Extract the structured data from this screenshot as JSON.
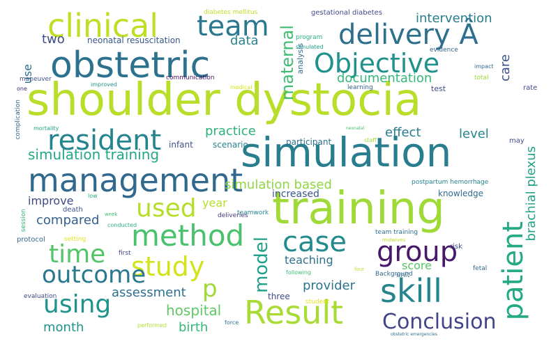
{
  "words": [
    {
      "text": "shoulder dystocia",
      "color": "#b8de29"
    },
    {
      "text": "simulation",
      "color": "#287d8e"
    },
    {
      "text": "training",
      "color": "#a0da39"
    },
    {
      "text": "obstetric",
      "color": "#2c728e"
    },
    {
      "text": "management",
      "color": "#31688e"
    },
    {
      "text": "delivery Â",
      "color": "#2d708e"
    },
    {
      "text": "clinical",
      "color": "#bddf26"
    },
    {
      "text": "team",
      "color": "#2a788e"
    },
    {
      "text": "resident",
      "color": "#25858e"
    },
    {
      "text": "Objective",
      "color": "#21918c"
    },
    {
      "text": "method",
      "color": "#4ac16d"
    },
    {
      "text": "Result",
      "color": "#a8db34"
    },
    {
      "text": "study",
      "color": "#d2e21b"
    },
    {
      "text": "skill",
      "color": "#25848e"
    },
    {
      "text": "group",
      "color": "#48186a"
    },
    {
      "text": "case",
      "color": "#238a8d"
    },
    {
      "text": "patient",
      "color": "#23a983"
    },
    {
      "text": "used",
      "color": "#b5de2b"
    },
    {
      "text": "using",
      "color": "#20938c"
    },
    {
      "text": "time",
      "color": "#52c569"
    },
    {
      "text": "outcome",
      "color": "#2a788e"
    },
    {
      "text": "Conclusion",
      "color": "#414487"
    },
    {
      "text": "maternal",
      "color": "#3fbc73"
    },
    {
      "text": "model",
      "color": "#1fa088"
    },
    {
      "text": "brachial plexus",
      "color": "#20a386"
    },
    {
      "text": "p",
      "color": "#a0da39"
    },
    {
      "text": "simulation training",
      "color": "#22a884"
    },
    {
      "text": "intervention",
      "color": "#287d8e"
    },
    {
      "text": "documentation",
      "color": "#35b779"
    },
    {
      "text": "practice",
      "color": "#2db27d"
    },
    {
      "text": "effect",
      "color": "#287c8e"
    },
    {
      "text": "level",
      "color": "#25858e"
    },
    {
      "text": "simulation based",
      "color": "#8fd744"
    },
    {
      "text": "two",
      "color": "#3e4a89"
    },
    {
      "text": "data",
      "color": "#26828e"
    },
    {
      "text": "use",
      "color": "#2e6e8e"
    },
    {
      "text": "care",
      "color": "#3b528b"
    },
    {
      "text": "improve",
      "color": "#3e4a89"
    },
    {
      "text": "compared",
      "color": "#355f8d"
    },
    {
      "text": "year",
      "color": "#b5de2b"
    },
    {
      "text": "increased",
      "color": "#39568c"
    },
    {
      "text": "teaching",
      "color": "#2d708e"
    },
    {
      "text": "score",
      "color": "#56c667"
    },
    {
      "text": "provider",
      "color": "#2c738e"
    },
    {
      "text": "assessment",
      "color": "#2e6f8e"
    },
    {
      "text": "hospital",
      "color": "#5ec962"
    },
    {
      "text": "birth",
      "color": "#35b779"
    },
    {
      "text": "month",
      "color": "#20928c"
    },
    {
      "text": "neonatal resuscitation",
      "color": "#39558c"
    },
    {
      "text": "infant",
      "color": "#3b528b"
    },
    {
      "text": "scenario",
      "color": "#26828e"
    },
    {
      "text": "participant",
      "color": "#2d718e"
    },
    {
      "text": "knowledge",
      "color": "#2f6b8e"
    },
    {
      "text": "death",
      "color": "#3b528b"
    },
    {
      "text": "diabetes mellitus",
      "color": "#bddf26"
    },
    {
      "text": "gestational diabetes",
      "color": "#3e4a89"
    },
    {
      "text": "program",
      "color": "#29af7f"
    },
    {
      "text": "simulated",
      "color": "#1f9e89"
    },
    {
      "text": "evidence",
      "color": "#32658e"
    },
    {
      "text": "analysis",
      "color": "#2e6e8e"
    },
    {
      "text": "impact",
      "color": "#31688e"
    },
    {
      "text": "total",
      "color": "#9bd93c"
    },
    {
      "text": "rate",
      "color": "#3f4788"
    },
    {
      "text": "test",
      "color": "#3c508b"
    },
    {
      "text": "learning",
      "color": "#355e8d"
    },
    {
      "text": "maneuver",
      "color": "#3b528b"
    },
    {
      "text": "improved",
      "color": "#21918c"
    },
    {
      "text": "communication",
      "color": "#471365"
    },
    {
      "text": "medical",
      "color": "#d8e219"
    },
    {
      "text": "one",
      "color": "#482878"
    },
    {
      "text": "mortality",
      "color": "#20a486"
    },
    {
      "text": "complication",
      "color": "#31688e"
    },
    {
      "text": "neonatal",
      "color": "#44bf70"
    },
    {
      "text": "staff",
      "color": "#a2da37"
    },
    {
      "text": "may",
      "color": "#3e4989"
    },
    {
      "text": "postpartum hemorrhage",
      "color": "#26828e"
    },
    {
      "text": "teamwork",
      "color": "#24878e"
    },
    {
      "text": "week",
      "color": "#3fbc73"
    },
    {
      "text": "low",
      "color": "#26ad81"
    },
    {
      "text": "conducted",
      "color": "#2db27d"
    },
    {
      "text": "deliveries",
      "color": "#443983"
    },
    {
      "text": "session",
      "color": "#35b779"
    },
    {
      "text": "protocol",
      "color": "#31688e"
    },
    {
      "text": "setting",
      "color": "#e5e419"
    },
    {
      "text": "first",
      "color": "#3e4a89"
    },
    {
      "text": "team training",
      "color": "#2f6c8e"
    },
    {
      "text": "midwives",
      "color": "#b5de2b"
    },
    {
      "text": "risk",
      "color": "#3e4a89"
    },
    {
      "text": "fetal",
      "color": "#31688e"
    },
    {
      "text": "four",
      "color": "#c2df23"
    },
    {
      "text": "following",
      "color": "#3fbc73"
    },
    {
      "text": "Background",
      "color": "#31688e"
    },
    {
      "text": "unit",
      "color": "#2e6e8e"
    },
    {
      "text": "three",
      "color": "#3e4a89"
    },
    {
      "text": "evaluation",
      "color": "#3e4a89"
    },
    {
      "text": "student",
      "color": "#e5e419"
    },
    {
      "text": "performed",
      "color": "#b2dd2d"
    },
    {
      "text": "force",
      "color": "#2c728e"
    },
    {
      "text": "obstetric emergencies",
      "color": "#2d708e"
    }
  ]
}
